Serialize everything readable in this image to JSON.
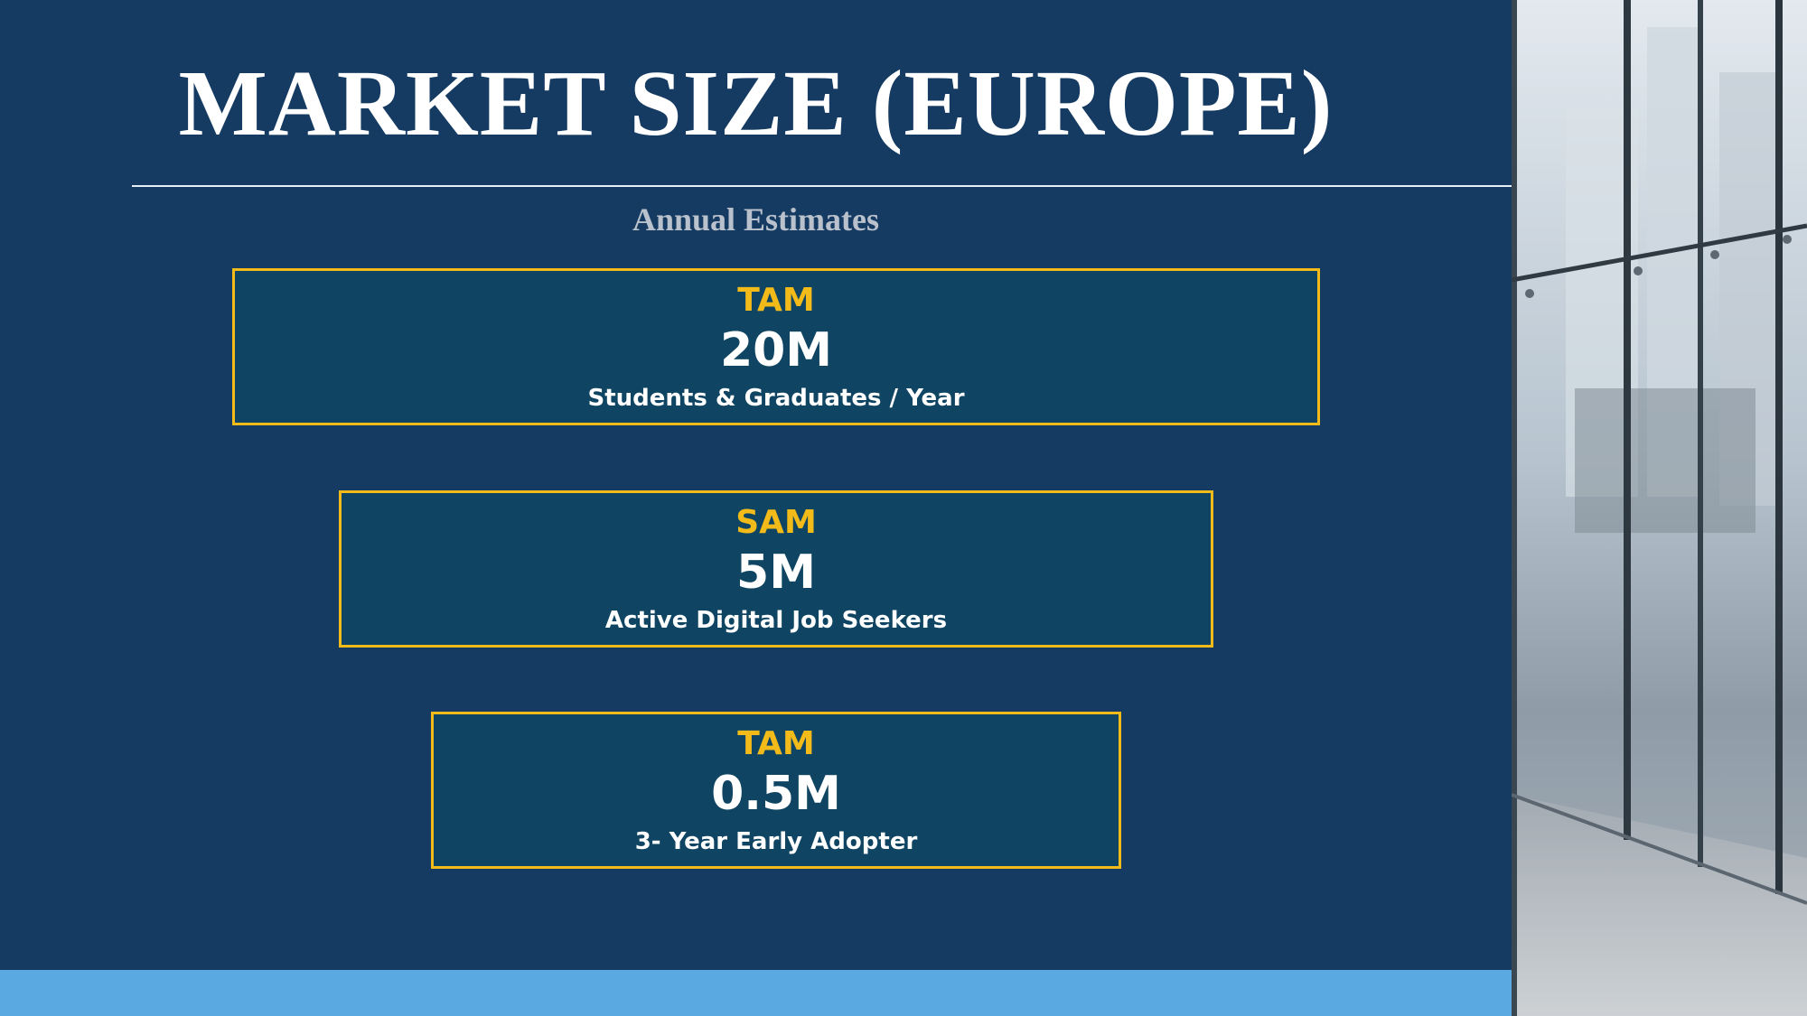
{
  "slide": {
    "title": "MARKET SIZE (EUROPE)",
    "subtitle": "Annual Estimates"
  },
  "boxes": [
    {
      "label": "TAM",
      "value": "20M",
      "description": "Students & Graduates / Year"
    },
    {
      "label": "SAM",
      "value": "5M",
      "description": "Active Digital Job Seekers"
    },
    {
      "label": "TAM",
      "value": "0.5M",
      "description": "3- Year Early Adopter"
    }
  ],
  "colors": {
    "background": "#163b63",
    "box_fill": "#0f4562",
    "box_border": "#f2bb1a",
    "label_text": "#f2bb1a",
    "bottom_bar": "#5aa9e0"
  }
}
